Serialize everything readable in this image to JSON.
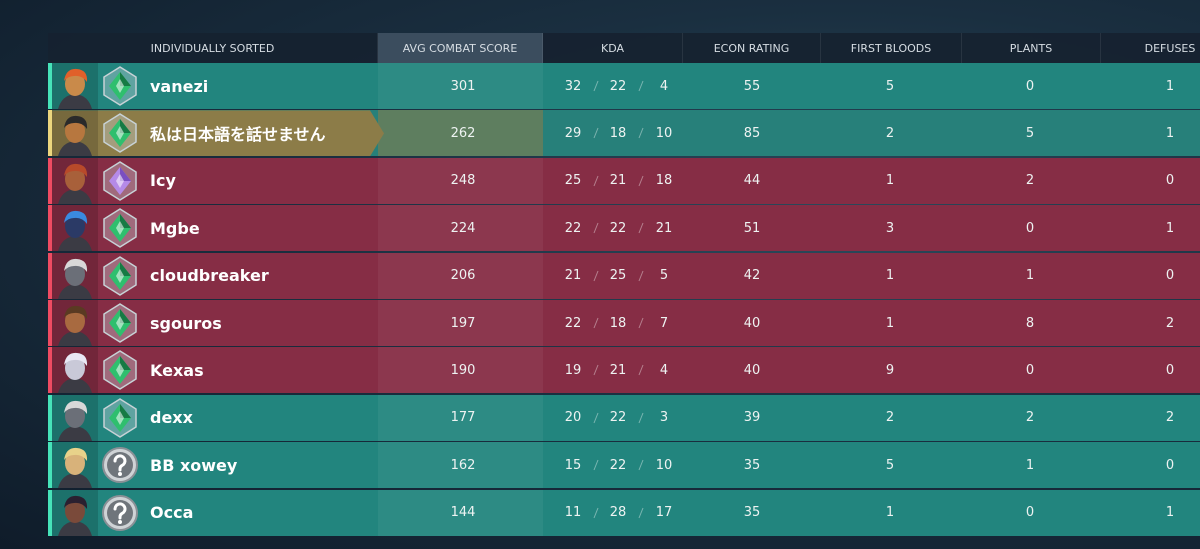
{
  "table": {
    "headers": [
      "INDIVIDUALLY SORTED",
      "AVG COMBAT SCORE",
      "KDA",
      "ECON RATING",
      "FIRST BLOODS",
      "PLANTS",
      "DEFUSES"
    ],
    "rows": [
      {
        "name": "vanezi",
        "acs": 301,
        "k": 32,
        "d": 22,
        "a": 4,
        "econ": 55,
        "first_bloods": 5,
        "plants": 0,
        "defuses": 1
      },
      {
        "name": "私は日本語を話せません",
        "acs": 262,
        "k": 29,
        "d": 18,
        "a": 10,
        "econ": 85,
        "first_bloods": 2,
        "plants": 5,
        "defuses": 1
      },
      {
        "name": "Icy",
        "acs": 248,
        "k": 25,
        "d": 21,
        "a": 18,
        "econ": 44,
        "first_bloods": 1,
        "plants": 2,
        "defuses": 0
      },
      {
        "name": "Mgbe",
        "acs": 224,
        "k": 22,
        "d": 22,
        "a": 21,
        "econ": 51,
        "first_bloods": 3,
        "plants": 0,
        "defuses": 1
      },
      {
        "name": "cloudbreaker",
        "acs": 206,
        "k": 21,
        "d": 25,
        "a": 5,
        "econ": 42,
        "first_bloods": 1,
        "plants": 1,
        "defuses": 0
      },
      {
        "name": "sgouros",
        "acs": 197,
        "k": 22,
        "d": 18,
        "a": 7,
        "econ": 40,
        "first_bloods": 1,
        "plants": 8,
        "defuses": 2
      },
      {
        "name": "Kexas",
        "acs": 190,
        "k": 19,
        "d": 21,
        "a": 4,
        "econ": 40,
        "first_bloods": 9,
        "plants": 0,
        "defuses": 0
      },
      {
        "name": "dexx",
        "acs": 177,
        "k": 20,
        "d": 22,
        "a": 3,
        "econ": 39,
        "first_bloods": 2,
        "plants": 2,
        "defuses": 2
      },
      {
        "name": "BB xowey",
        "acs": 162,
        "k": 15,
        "d": 22,
        "a": 10,
        "econ": 35,
        "first_bloods": 5,
        "plants": 1,
        "defuses": 0
      },
      {
        "name": "Occa",
        "acs": 144,
        "k": 11,
        "d": 28,
        "a": 17,
        "econ": 35,
        "first_bloods": 1,
        "plants": 0,
        "defuses": 1
      }
    ]
  }
}
